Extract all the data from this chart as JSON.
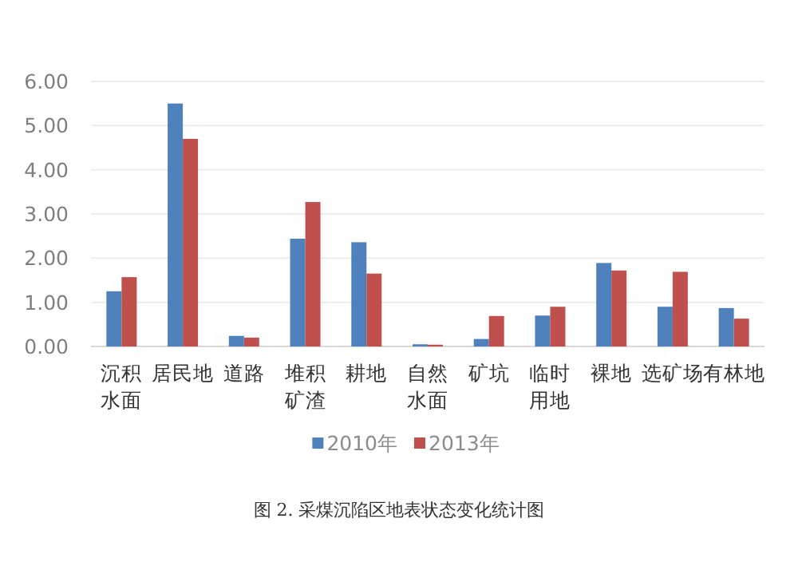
{
  "chart_data": {
    "type": "bar",
    "categories": [
      "沉积水面",
      "居民地",
      "道路",
      "堆积矿渣",
      "耕地",
      "自然水面",
      "矿坑",
      "临时用地",
      "裸地",
      "选矿场",
      "有林地"
    ],
    "series": [
      {
        "name": "2010年",
        "color": "#4f81bd",
        "values": [
          1.25,
          5.5,
          0.24,
          2.44,
          2.36,
          0.05,
          0.17,
          0.7,
          1.89,
          0.9,
          0.87
        ]
      },
      {
        "name": "2013年",
        "color": "#c0504d",
        "values": [
          1.57,
          4.7,
          0.2,
          3.27,
          1.65,
          0.04,
          0.69,
          0.9,
          1.72,
          1.69,
          0.63
        ]
      }
    ],
    "ylim": [
      0,
      6
    ],
    "yticks": [
      {
        "value": 0,
        "label": "0.00"
      },
      {
        "value": 1,
        "label": "1.00"
      },
      {
        "value": 2,
        "label": "2.00"
      },
      {
        "value": 3,
        "label": "3.00"
      },
      {
        "value": 4,
        "label": "4.00"
      },
      {
        "value": 5,
        "label": "5.00"
      },
      {
        "value": 6,
        "label": "6.00"
      }
    ],
    "grid": "y",
    "legend": "bottom",
    "annotations": [
      "图 2.  采煤沉陷区地表状态变化统计图"
    ]
  }
}
